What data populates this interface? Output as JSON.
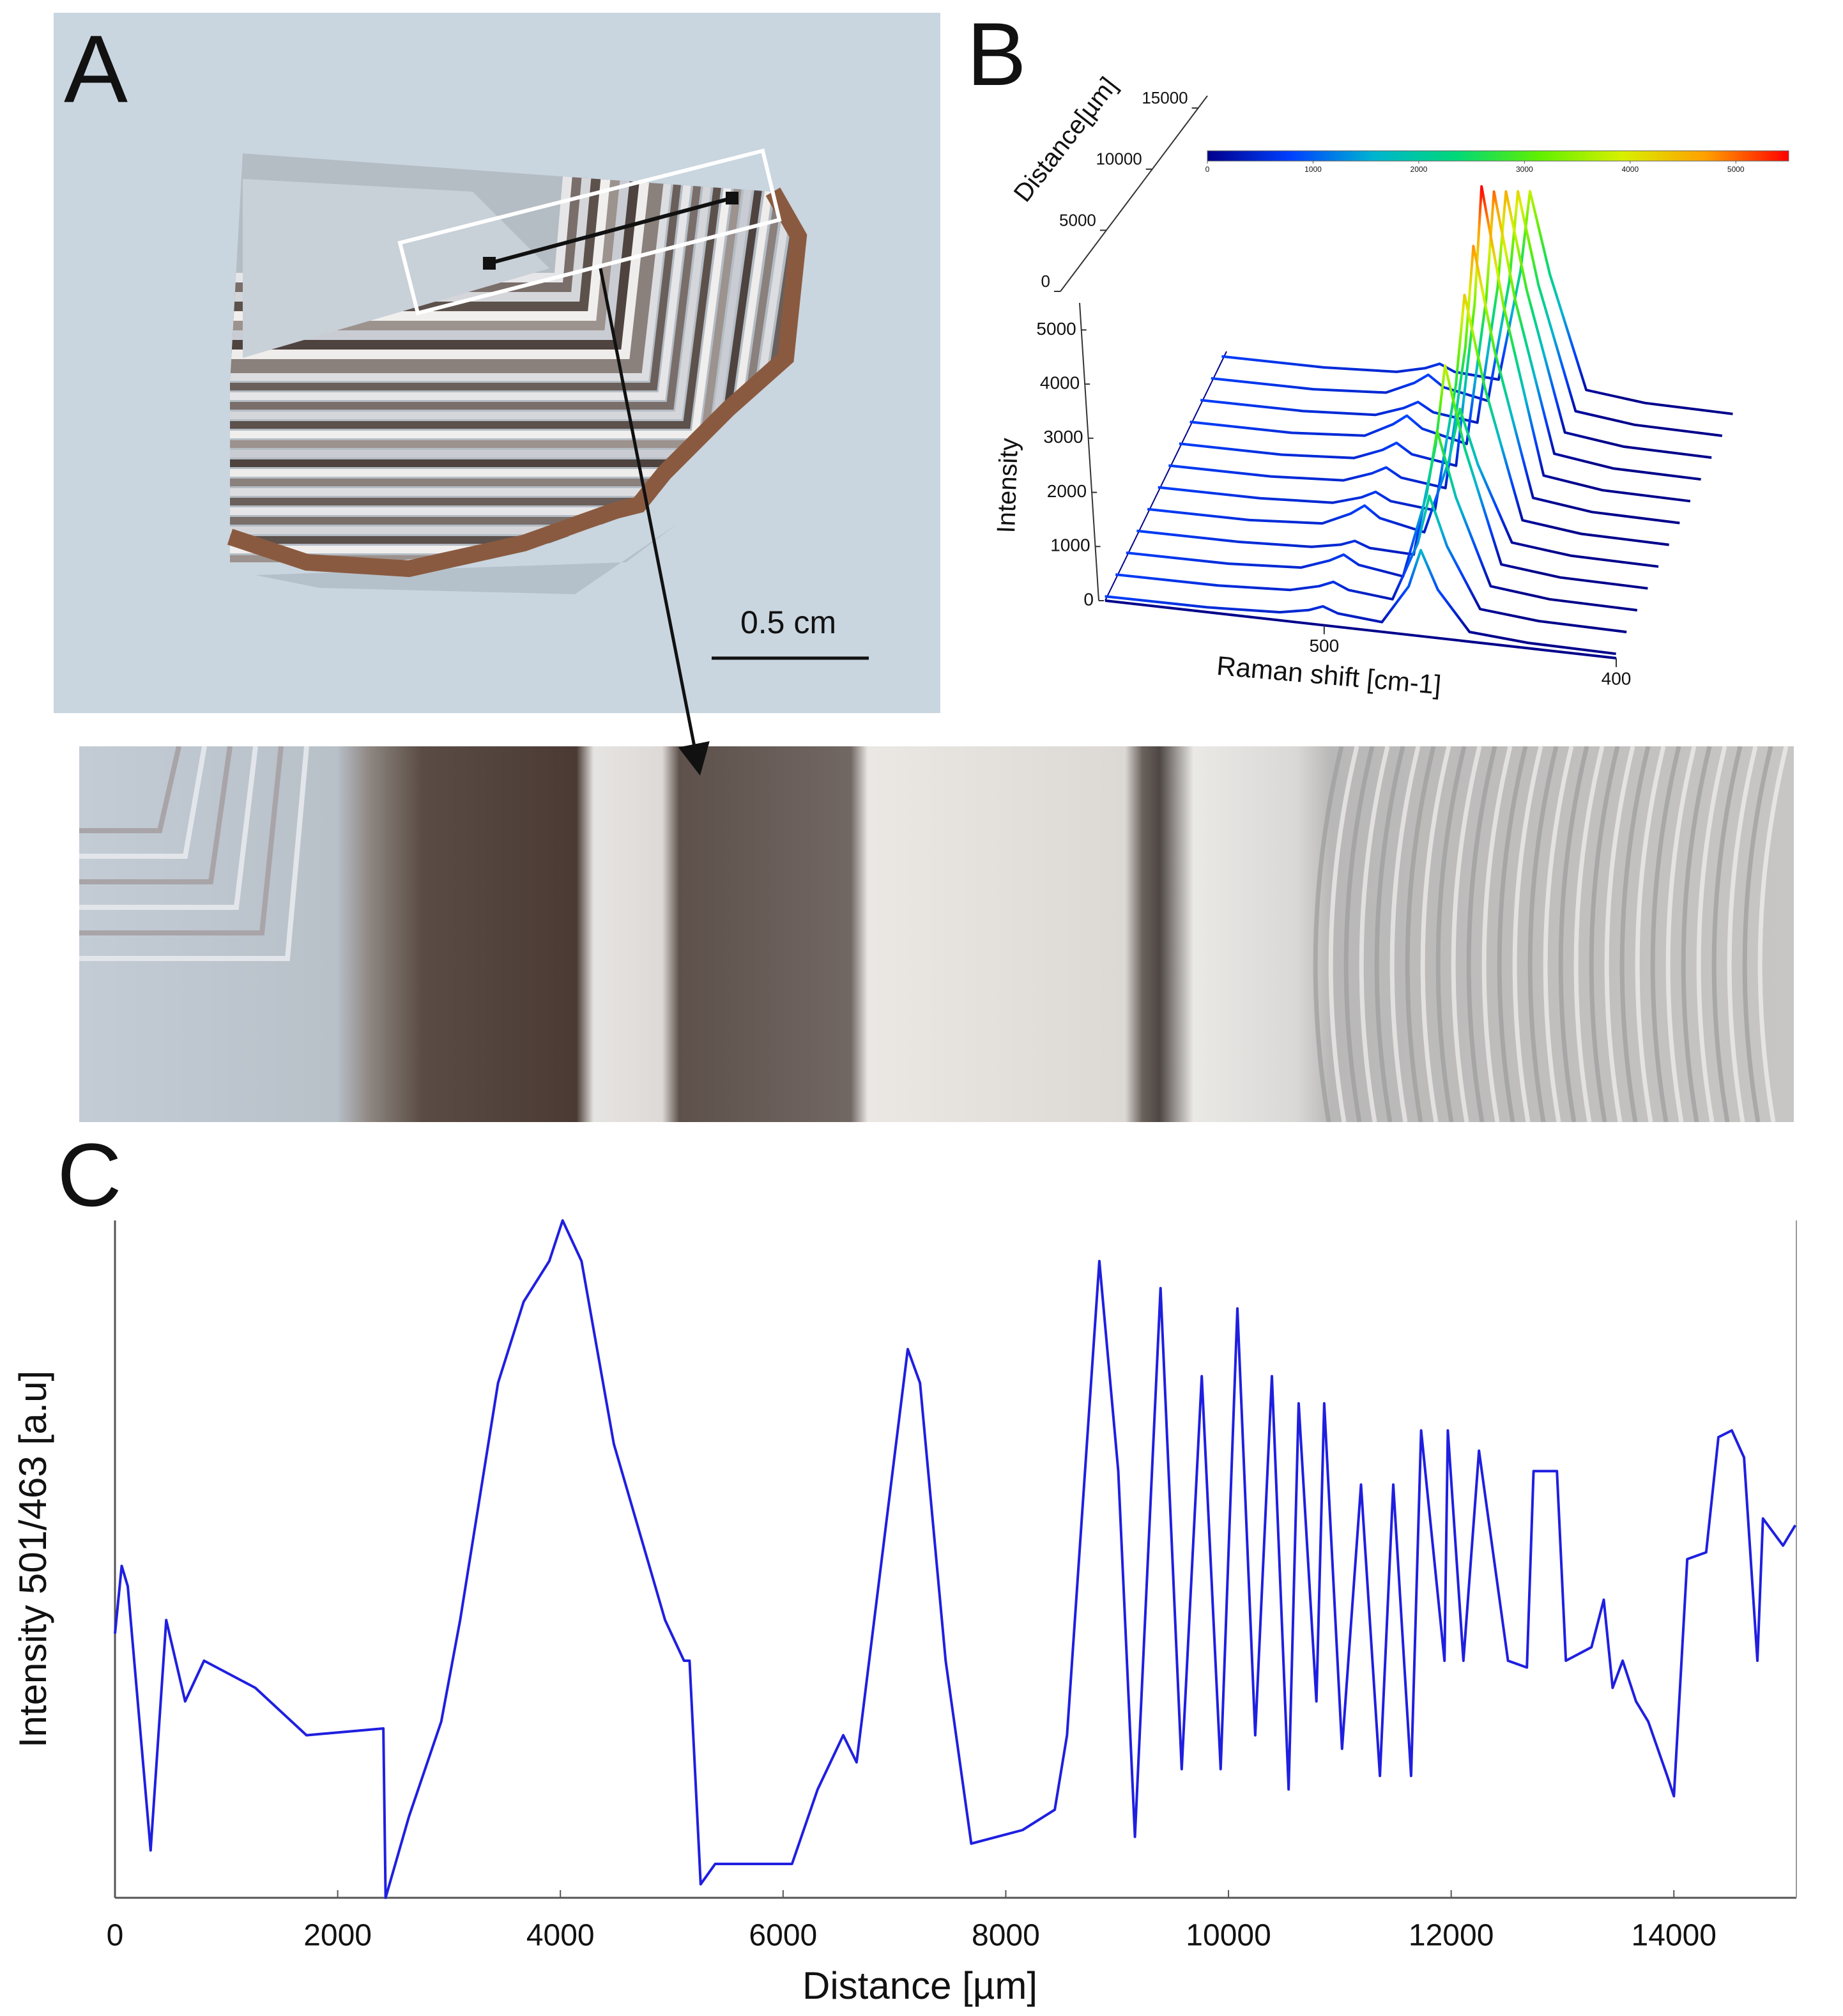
{
  "labels": {
    "panel_a": "A",
    "panel_b": "B",
    "panel_c": "C",
    "scale_bar": "0.5 cm"
  },
  "chart_data": [
    {
      "type": "waterfall",
      "xlabel": "Raman shift [cm-1]",
      "ylabel": "Intensity",
      "zlabel": "Distance[µm]",
      "x": [
        575,
        540,
        515,
        505,
        500,
        495,
        480,
        470,
        465,
        460,
        450,
        430,
        400
      ],
      "xlim": [
        575,
        400
      ],
      "xticks": [
        500,
        400
      ],
      "ylim": [
        0,
        5500
      ],
      "yticks": [
        0,
        1000,
        2000,
        3000,
        4000,
        5000
      ],
      "zlim": [
        0,
        16000
      ],
      "zticks": [
        0,
        5000,
        10000,
        15000
      ],
      "colorbar": {
        "lim": [
          0,
          5500
        ],
        "ticks": [
          0,
          1000,
          2000,
          3000,
          4000,
          5000
        ],
        "colors": [
          "#00008b",
          "#0040ff",
          "#00b4d0",
          "#00d878",
          "#60f000",
          "#d8f000",
          "#ffa000",
          "#ff0000"
        ]
      },
      "series": [
        {
          "distance": 0,
          "values": [
            80,
            90,
            150,
            250,
            350,
            250,
            180,
            900,
            1600,
            900,
            180,
            100,
            80
          ]
        },
        {
          "distance": 1400,
          "values": [
            80,
            90,
            160,
            290,
            400,
            280,
            200,
            1300,
            2200,
            1300,
            200,
            100,
            80
          ]
        },
        {
          "distance": 2800,
          "values": [
            80,
            90,
            170,
            360,
            500,
            340,
            220,
            1800,
            3000,
            1800,
            220,
            100,
            80
          ]
        },
        {
          "distance": 4200,
          "values": [
            80,
            90,
            150,
            250,
            350,
            250,
            220,
            2300,
            3800,
            2300,
            220,
            100,
            80
          ]
        },
        {
          "distance": 5600,
          "values": [
            80,
            90,
            180,
            420,
            600,
            400,
            230,
            1600,
            2600,
            1600,
            220,
            100,
            80
          ]
        },
        {
          "distance": 7000,
          "values": [
            80,
            90,
            160,
            320,
            450,
            310,
            230,
            2600,
            4300,
            2600,
            230,
            100,
            80
          ]
        },
        {
          "distance": 8400,
          "values": [
            80,
            90,
            170,
            360,
            500,
            340,
            240,
            2900,
            4800,
            2900,
            240,
            100,
            80
          ]
        },
        {
          "distance": 9800,
          "values": [
            80,
            90,
            180,
            390,
            550,
            370,
            250,
            3300,
            5500,
            3300,
            250,
            100,
            80
          ]
        },
        {
          "distance": 11200,
          "values": [
            80,
            90,
            190,
            460,
            650,
            440,
            250,
            3000,
            5000,
            3000,
            250,
            100,
            80
          ]
        },
        {
          "distance": 12600,
          "values": [
            80,
            90,
            170,
            360,
            500,
            340,
            240,
            2800,
            4600,
            2800,
            240,
            100,
            80
          ]
        },
        {
          "distance": 14000,
          "values": [
            80,
            90,
            180,
            420,
            600,
            400,
            240,
            2500,
            4200,
            2500,
            230,
            100,
            80
          ]
        },
        {
          "distance": 15400,
          "values": [
            80,
            90,
            160,
            290,
            400,
            280,
            230,
            2300,
            3800,
            2300,
            220,
            100,
            80
          ]
        }
      ]
    },
    {
      "type": "line",
      "xlabel": "Distance [µm]",
      "ylabel": "Intensity 501/463 [a.u]",
      "color": "#1f1fe0",
      "xlim": [
        0,
        15100
      ],
      "xticks": [
        0,
        2000,
        4000,
        6000,
        8000,
        10000,
        12000,
        14000
      ],
      "ylim": [
        0,
        10
      ],
      "x": [
        0,
        60,
        115,
        320,
        460,
        630,
        800,
        1260,
        1720,
        2410,
        2430,
        2640,
        2930,
        3100,
        3440,
        3670,
        3900,
        4020,
        4190,
        4480,
        4940,
        5110,
        5160,
        5260,
        5390,
        6080,
        6310,
        6540,
        6660,
        7120,
        7230,
        7460,
        7690,
        8150,
        8440,
        8550,
        8840,
        9010,
        9160,
        9390,
        9580,
        9760,
        9930,
        10080,
        10240,
        10390,
        10540,
        10630,
        10790,
        10860,
        11020,
        11190,
        11360,
        11480,
        11640,
        11730,
        11940,
        11970,
        12110,
        12250,
        12510,
        12680,
        12740,
        12950,
        13030,
        13260,
        13370,
        13450,
        13540,
        13660,
        13770,
        13940,
        14000,
        14120,
        14290,
        14400,
        14520,
        14630,
        14750,
        14800,
        14980,
        15090
      ],
      "values": [
        3.9,
        4.9,
        4.6,
        0.7,
        4.1,
        2.9,
        3.5,
        3.1,
        2.4,
        2.5,
        0,
        1.2,
        2.6,
        4.1,
        7.6,
        8.8,
        9.4,
        10,
        9.4,
        6.7,
        4.1,
        3.5,
        3.5,
        0.2,
        0.5,
        0.5,
        1.6,
        2.4,
        2.0,
        8.1,
        7.6,
        3.5,
        0.8,
        1.0,
        1.3,
        2.4,
        9.4,
        6.3,
        0.9,
        9.0,
        1.9,
        7.7,
        1.9,
        8.7,
        2.4,
        7.7,
        1.6,
        7.3,
        2.9,
        7.3,
        2.2,
        6.1,
        1.8,
        6.1,
        1.8,
        6.9,
        3.5,
        6.9,
        3.5,
        6.6,
        3.5,
        3.4,
        6.3,
        6.3,
        3.5,
        3.7,
        4.4,
        3.1,
        3.5,
        2.9,
        2.6,
        1.8,
        1.5,
        5.0,
        5.1,
        6.8,
        6.9,
        6.5,
        3.5,
        5.6,
        5.2,
        5.5
      ]
    }
  ]
}
